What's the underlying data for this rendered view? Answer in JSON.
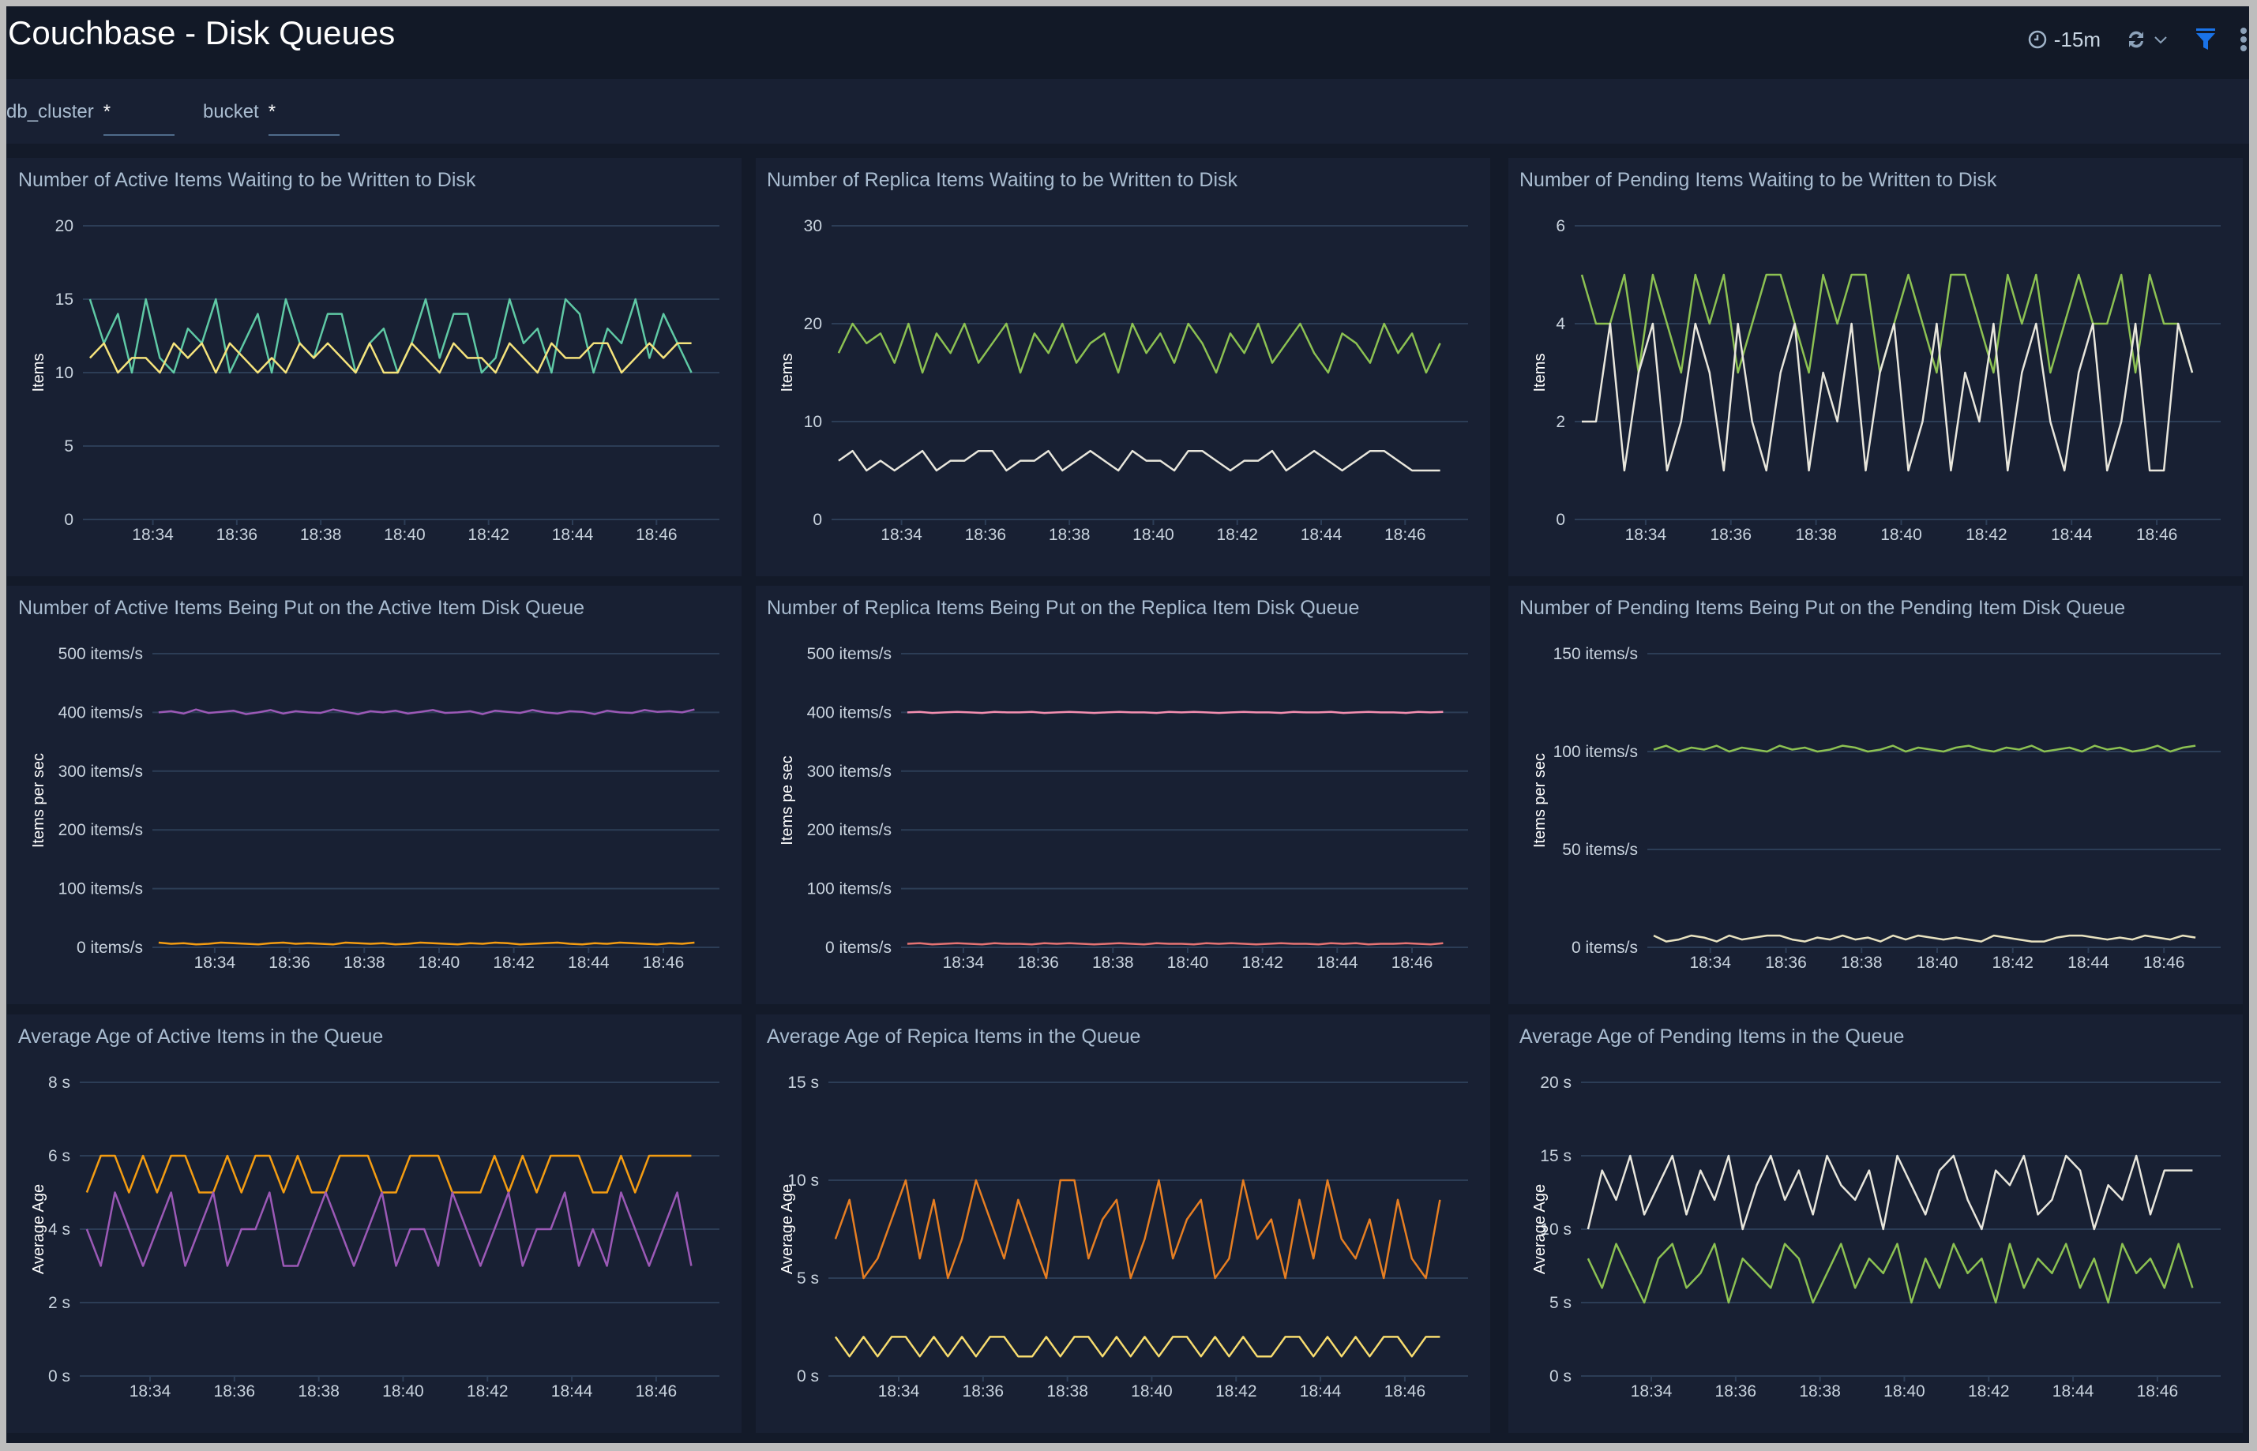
{
  "header": {
    "title": "Couchbase - Disk Queues",
    "time_range": "-15m",
    "icons": [
      "clock-icon",
      "refresh-icon",
      "chevron-down-icon",
      "filter-icon",
      "more-vertical-icon"
    ],
    "accent_color": "#1a73e8"
  },
  "filters": [
    {
      "label": "db_cluster",
      "value": "*"
    },
    {
      "label": "bucket",
      "value": "*"
    }
  ],
  "x_axis": {
    "range": [
      "18:32:20",
      "18:47:30"
    ],
    "ticks": [
      "18:34",
      "18:36",
      "18:38",
      "18:40",
      "18:42",
      "18:44",
      "18:46"
    ],
    "series_start": "18:32:30",
    "series_step_seconds": 20
  },
  "chart_data": [
    {
      "type": "line",
      "title": "Number of Active Items Waiting to be Written to Disk",
      "ylabel": "Items",
      "ylim": [
        0,
        20
      ],
      "yticks": [
        "0",
        "5",
        "10",
        "15",
        "20"
      ],
      "ytick_values": [
        0,
        5,
        10,
        15,
        20
      ],
      "grid": true,
      "series": [
        {
          "color": "#5fc9a5",
          "values": [
            15,
            12,
            14,
            10,
            15,
            11,
            10,
            13,
            12,
            15,
            10,
            12,
            14,
            10,
            15,
            12,
            11,
            14,
            14,
            10,
            12,
            13,
            10,
            12,
            15,
            11,
            14,
            14,
            10,
            11,
            15,
            12,
            13,
            10,
            15,
            14,
            10,
            13,
            12,
            15,
            11,
            14,
            12,
            10
          ]
        },
        {
          "color": "#f5e37c",
          "values": [
            11,
            12,
            10,
            11,
            11,
            10,
            12,
            11,
            12,
            10,
            12,
            11,
            10,
            11,
            10,
            12,
            11,
            12,
            11,
            10,
            12,
            10,
            10,
            12,
            11,
            10,
            12,
            11,
            11,
            10,
            12,
            11,
            10,
            12,
            11,
            11,
            12,
            12,
            10,
            11,
            12,
            11,
            12,
            12
          ]
        }
      ]
    },
    {
      "type": "line",
      "title": "Number of Replica Items Waiting to be Written to Disk",
      "ylabel": "Items",
      "ylim": [
        0,
        30
      ],
      "yticks": [
        "0",
        "10",
        "20",
        "30"
      ],
      "ytick_values": [
        0,
        10,
        20,
        30
      ],
      "grid": true,
      "series": [
        {
          "color": "#8cc152",
          "values": [
            17,
            20,
            18,
            19,
            16,
            20,
            15,
            19,
            17,
            20,
            16,
            18,
            20,
            15,
            19,
            17,
            20,
            16,
            18,
            19,
            15,
            20,
            17,
            19,
            16,
            20,
            18,
            15,
            19,
            17,
            20,
            16,
            18,
            20,
            17,
            15,
            19,
            18,
            16,
            20,
            17,
            19,
            15,
            18
          ]
        },
        {
          "color": "#e8e6dc",
          "values": [
            6,
            7,
            5,
            6,
            5,
            6,
            7,
            5,
            6,
            6,
            7,
            7,
            5,
            6,
            6,
            7,
            5,
            6,
            7,
            6,
            5,
            7,
            6,
            6,
            5,
            7,
            7,
            6,
            5,
            6,
            6,
            7,
            5,
            6,
            7,
            6,
            5,
            6,
            7,
            7,
            6,
            5,
            5,
            5
          ]
        }
      ]
    },
    {
      "type": "line",
      "title": "Number of Pending Items Waiting to be Written to Disk",
      "ylabel": "Items",
      "ylim": [
        0,
        6
      ],
      "yticks": [
        "0",
        "2",
        "4",
        "6"
      ],
      "ytick_values": [
        0,
        2,
        4,
        6
      ],
      "grid": true,
      "series": [
        {
          "color": "#8cc152",
          "values": [
            5,
            4,
            4,
            5,
            3,
            5,
            4,
            3,
            5,
            4,
            5,
            3,
            4,
            5,
            5,
            4,
            3,
            5,
            4,
            5,
            5,
            3,
            4,
            5,
            4,
            3,
            5,
            5,
            4,
            3,
            5,
            4,
            5,
            3,
            4,
            5,
            4,
            4,
            5,
            3,
            5,
            4,
            4,
            3
          ]
        },
        {
          "color": "#e8e6dc",
          "values": [
            2,
            2,
            4,
            1,
            3,
            4,
            1,
            2,
            4,
            3,
            1,
            4,
            2,
            1,
            3,
            4,
            1,
            3,
            2,
            4,
            1,
            3,
            4,
            1,
            2,
            4,
            1,
            3,
            2,
            4,
            1,
            3,
            4,
            2,
            1,
            3,
            4,
            1,
            2,
            4,
            1,
            1,
            4,
            3
          ]
        }
      ]
    },
    {
      "type": "line",
      "title": "Number of Active Items Being Put on the Active Item Disk Queue",
      "ylabel": "Items per sec",
      "ylim": [
        0,
        500
      ],
      "yticks": [
        "0 items/s",
        "100 items/s",
        "200 items/s",
        "300 items/s",
        "400 items/s",
        "500 items/s"
      ],
      "ytick_values": [
        0,
        100,
        200,
        300,
        400,
        500
      ],
      "grid": true,
      "series": [
        {
          "color": "#9b59b6",
          "values": [
            400,
            402,
            398,
            405,
            399,
            401,
            403,
            397,
            400,
            404,
            398,
            402,
            400,
            399,
            405,
            401,
            397,
            402,
            400,
            403,
            398,
            401,
            404,
            399,
            400,
            402,
            397,
            403,
            401,
            399,
            404,
            400,
            398,
            402,
            401,
            397,
            403,
            400,
            399,
            404,
            401,
            402,
            400,
            405
          ]
        },
        {
          "color": "#f39c12",
          "values": [
            8,
            6,
            7,
            5,
            6,
            8,
            7,
            6,
            5,
            7,
            8,
            6,
            7,
            6,
            5,
            8,
            7,
            6,
            7,
            5,
            6,
            8,
            7,
            6,
            5,
            7,
            6,
            8,
            7,
            5,
            6,
            7,
            8,
            6,
            5,
            7,
            6,
            8,
            7,
            6,
            5,
            7,
            6,
            8
          ]
        }
      ]
    },
    {
      "type": "line",
      "title": "Number of Replica Items Being Put on the Replica Item Disk Queue",
      "ylabel": "Items pe sec",
      "ylim": [
        0,
        500
      ],
      "yticks": [
        "0 items/s",
        "100 items/s",
        "200 items/s",
        "300 items/s",
        "400 items/s",
        "500 items/s"
      ],
      "ytick_values": [
        0,
        100,
        200,
        300,
        400,
        500
      ],
      "grid": true,
      "series": [
        {
          "color": "#f48fb1",
          "values": [
            400,
            401,
            399,
            400,
            401,
            400,
            399,
            401,
            400,
            400,
            401,
            399,
            400,
            401,
            400,
            399,
            400,
            401,
            400,
            400,
            399,
            401,
            400,
            401,
            400,
            399,
            400,
            401,
            400,
            400,
            399,
            401,
            400,
            400,
            401,
            399,
            400,
            401,
            400,
            400,
            399,
            401,
            400,
            401
          ]
        },
        {
          "color": "#e57373",
          "values": [
            6,
            7,
            5,
            6,
            7,
            6,
            5,
            7,
            6,
            6,
            5,
            7,
            6,
            7,
            6,
            5,
            6,
            7,
            6,
            5,
            7,
            6,
            6,
            5,
            7,
            6,
            7,
            6,
            5,
            6,
            7,
            6,
            6,
            5,
            7,
            6,
            7,
            5,
            6,
            6,
            7,
            6,
            5,
            7
          ]
        }
      ]
    },
    {
      "type": "line",
      "title": "Number of Pending Items Being Put on the Pending Item Disk Queue",
      "ylabel": "Items per sec",
      "ylim": [
        0,
        150
      ],
      "yticks": [
        "0 items/s",
        "50 items/s",
        "100 items/s",
        "150 items/s"
      ],
      "ytick_values": [
        0,
        50,
        100,
        150
      ],
      "grid": true,
      "series": [
        {
          "color": "#8cc152",
          "values": [
            101,
            103,
            100,
            102,
            101,
            103,
            100,
            102,
            101,
            100,
            103,
            101,
            102,
            100,
            101,
            103,
            102,
            100,
            101,
            103,
            100,
            102,
            101,
            100,
            102,
            103,
            101,
            100,
            102,
            101,
            103,
            100,
            101,
            102,
            100,
            103,
            101,
            102,
            100,
            101,
            103,
            100,
            102,
            103
          ]
        },
        {
          "color": "#e8e2c0",
          "values": [
            6,
            3,
            4,
            6,
            5,
            3,
            6,
            4,
            5,
            6,
            6,
            4,
            3,
            5,
            4,
            6,
            4,
            5,
            3,
            6,
            4,
            6,
            5,
            4,
            5,
            4,
            3,
            6,
            5,
            4,
            3,
            3,
            5,
            6,
            6,
            5,
            4,
            5,
            4,
            6,
            5,
            4,
            6,
            5
          ]
        }
      ]
    },
    {
      "type": "line",
      "title": "Average Age of Active Items in the Queue",
      "ylabel": "Average Age",
      "ylim": [
        0,
        8
      ],
      "yticks": [
        "0 s",
        "2 s",
        "4 s",
        "6 s",
        "8 s"
      ],
      "ytick_values": [
        0,
        2,
        4,
        6,
        8
      ],
      "grid": true,
      "series": [
        {
          "color": "#f39c12",
          "values": [
            5,
            6,
            6,
            5,
            6,
            5,
            6,
            6,
            5,
            5,
            6,
            5,
            6,
            6,
            5,
            6,
            5,
            5,
            6,
            6,
            6,
            5,
            5,
            6,
            6,
            6,
            5,
            5,
            5,
            6,
            5,
            6,
            5,
            6,
            6,
            6,
            5,
            5,
            6,
            5,
            6,
            6,
            6,
            6
          ]
        },
        {
          "color": "#9b59b6",
          "values": [
            4,
            3,
            5,
            4,
            3,
            4,
            5,
            3,
            4,
            5,
            3,
            4,
            4,
            5,
            3,
            3,
            4,
            5,
            4,
            3,
            4,
            5,
            3,
            4,
            4,
            3,
            5,
            4,
            3,
            4,
            5,
            3,
            4,
            4,
            5,
            3,
            4,
            3,
            5,
            4,
            3,
            4,
            5,
            3
          ]
        }
      ]
    },
    {
      "type": "line",
      "title": "Average Age of Repica Items in the Queue",
      "ylabel": "Average Age",
      "ylim": [
        0,
        15
      ],
      "yticks": [
        "0 s",
        "5 s",
        "10 s",
        "15 s"
      ],
      "ytick_values": [
        0,
        5,
        10,
        15
      ],
      "grid": true,
      "series": [
        {
          "color": "#e67e22",
          "values": [
            7,
            9,
            5,
            6,
            8,
            10,
            6,
            9,
            5,
            7,
            10,
            8,
            6,
            9,
            7,
            5,
            10,
            10,
            6,
            8,
            9,
            5,
            7,
            10,
            6,
            8,
            9,
            5,
            6,
            10,
            7,
            8,
            5,
            9,
            6,
            10,
            7,
            6,
            8,
            5,
            9,
            6,
            5,
            9
          ]
        },
        {
          "color": "#f7dc6f",
          "values": [
            2,
            1,
            2,
            1,
            2,
            2,
            1,
            2,
            1,
            2,
            1,
            2,
            2,
            1,
            1,
            2,
            1,
            2,
            2,
            1,
            2,
            1,
            2,
            1,
            2,
            2,
            1,
            2,
            1,
            2,
            1,
            1,
            2,
            2,
            1,
            2,
            1,
            2,
            1,
            2,
            2,
            1,
            2,
            2
          ]
        }
      ]
    },
    {
      "type": "line",
      "title": "Average Age of Pending Items in the Queue",
      "ylabel": "Average Age",
      "ylim": [
        0,
        20
      ],
      "yticks": [
        "0 s",
        "5 s",
        "10 s",
        "15 s",
        "20 s"
      ],
      "ytick_values": [
        0,
        5,
        10,
        15,
        20
      ],
      "grid": true,
      "series": [
        {
          "color": "#e8e6dc",
          "values": [
            10,
            14,
            12,
            15,
            11,
            13,
            15,
            11,
            14,
            12,
            15,
            10,
            13,
            15,
            12,
            14,
            11,
            15,
            13,
            12,
            14,
            10,
            15,
            13,
            11,
            14,
            15,
            12,
            10,
            14,
            13,
            15,
            11,
            12,
            15,
            14,
            10,
            13,
            12,
            15,
            11,
            14,
            14,
            14
          ]
        },
        {
          "color": "#8cc152",
          "values": [
            8,
            6,
            9,
            7,
            5,
            8,
            9,
            6,
            7,
            9,
            5,
            8,
            7,
            6,
            9,
            8,
            5,
            7,
            9,
            6,
            8,
            7,
            9,
            5,
            8,
            6,
            9,
            7,
            8,
            5,
            9,
            6,
            8,
            7,
            9,
            6,
            8,
            5,
            9,
            7,
            8,
            6,
            9,
            6
          ]
        }
      ]
    }
  ]
}
